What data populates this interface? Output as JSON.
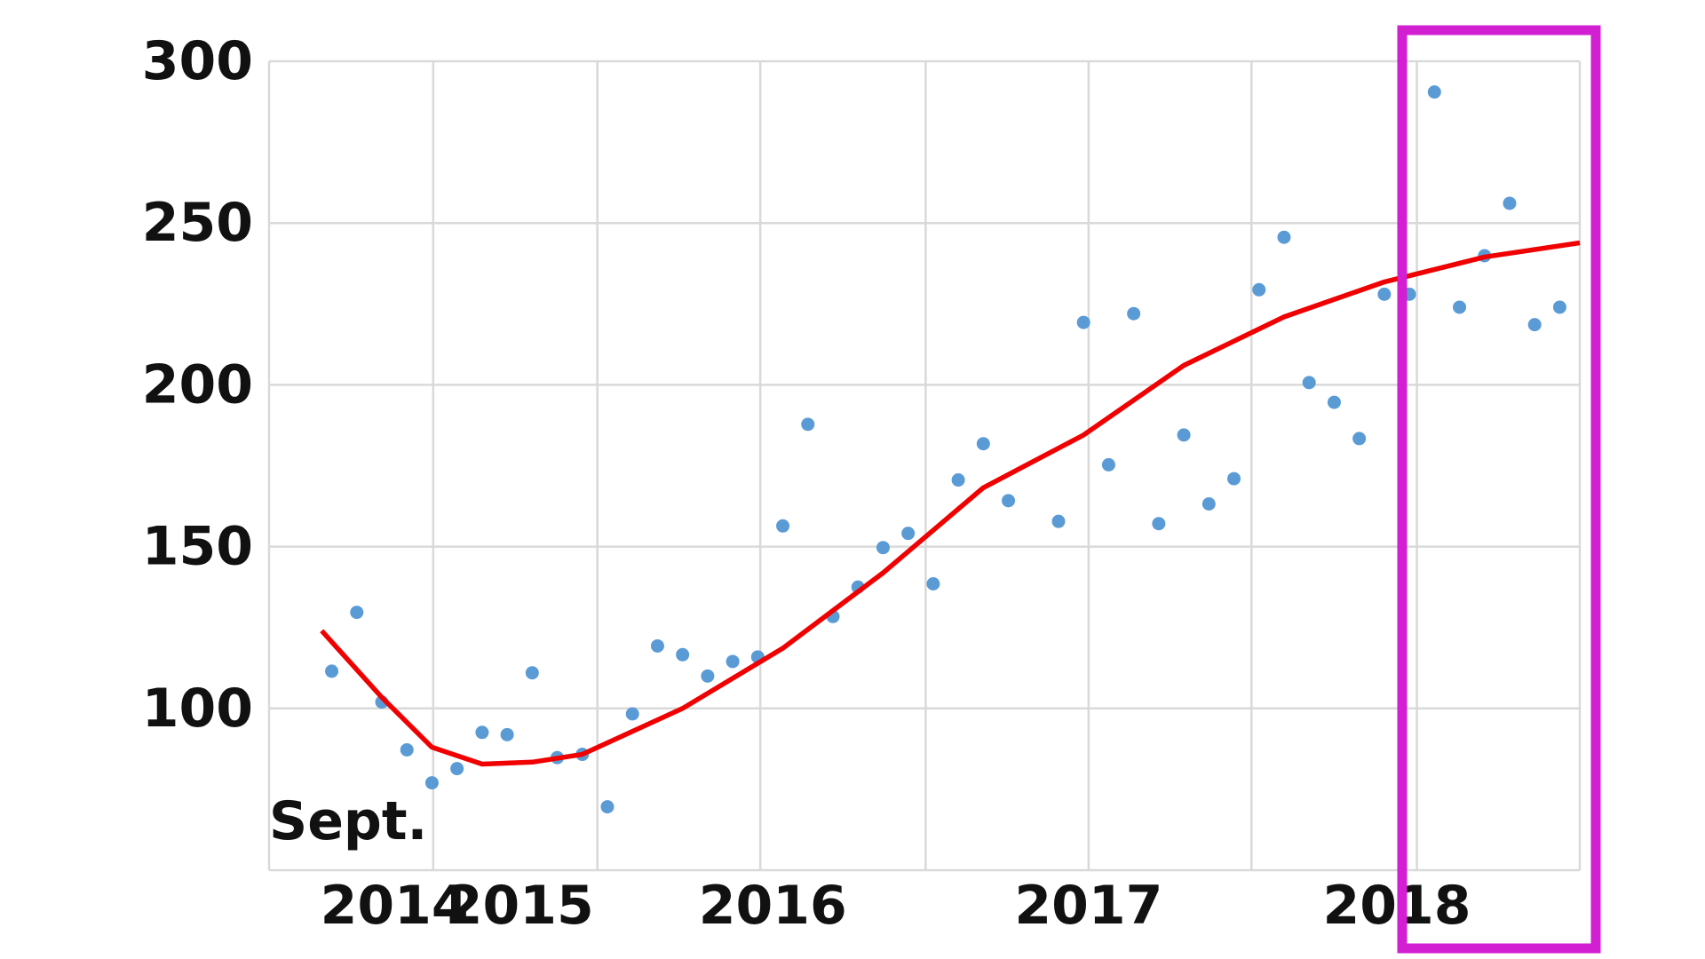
{
  "chart_data": {
    "type": "scatter",
    "annotation": "Sept.",
    "x": [
      0,
      1,
      2,
      3,
      4,
      5,
      6,
      7,
      8,
      9,
      10,
      11,
      12,
      13,
      14,
      15,
      16,
      17,
      18,
      19,
      20,
      21,
      22,
      23,
      24,
      25,
      26,
      27,
      29,
      30,
      31,
      32,
      33,
      34,
      35,
      36,
      37,
      38,
      39,
      40,
      41,
      42,
      43,
      44,
      45,
      46,
      47,
      48,
      49
    ],
    "series": [
      {
        "color": "#5b9bd5",
        "values": [
          111.5,
          129.7,
          102,
          87.2,
          77,
          81.4,
          92.6,
          91.9,
          111,
          84.8,
          85.8,
          69.6,
          98.3,
          119.3,
          116.6,
          110,
          114.5,
          115.9,
          156.4,
          187.8,
          128.4,
          137.5,
          149.7,
          154.1,
          138.5,
          170.6,
          181.8,
          164.2,
          157.8,
          219.3,
          175.3,
          222,
          157.1,
          184.5,
          163.2,
          171,
          229.4,
          245.6,
          200.7,
          194.6,
          183.4,
          228,
          228,
          290.5,
          224,
          239.9,
          256.1,
          218.6,
          224
        ]
      }
    ],
    "trend": {
      "color": "#f00000",
      "x": [
        -0.4,
        2,
        4,
        6,
        8,
        10,
        14,
        18,
        22,
        26,
        30,
        34,
        38,
        42,
        46,
        49.8
      ],
      "values": [
        124,
        103.4,
        88,
        82.8,
        83.4,
        85.8,
        100,
        118.6,
        141.9,
        168.2,
        184.5,
        206,
        221,
        231.8,
        239.5,
        243.9
      ]
    },
    "highlight_color": "#d21fd2",
    "xlim": [
      -2.5,
      49.8
    ],
    "xgrid": [
      -2.5,
      4.05,
      10.6,
      17.1,
      23.7,
      30.2,
      36.7,
      43.3,
      49.8
    ],
    "xticks": [
      {
        "value": 2.5,
        "label": "2014"
      },
      {
        "value": 7.5,
        "label": "2015"
      },
      {
        "value": 17.6,
        "label": "2016"
      },
      {
        "value": 30.2,
        "label": "2017"
      },
      {
        "value": 42.5,
        "label": "2018"
      }
    ],
    "ylim": [
      50,
      300
    ],
    "yticks": [
      100,
      150,
      200,
      250,
      300
    ],
    "grid": true
  }
}
